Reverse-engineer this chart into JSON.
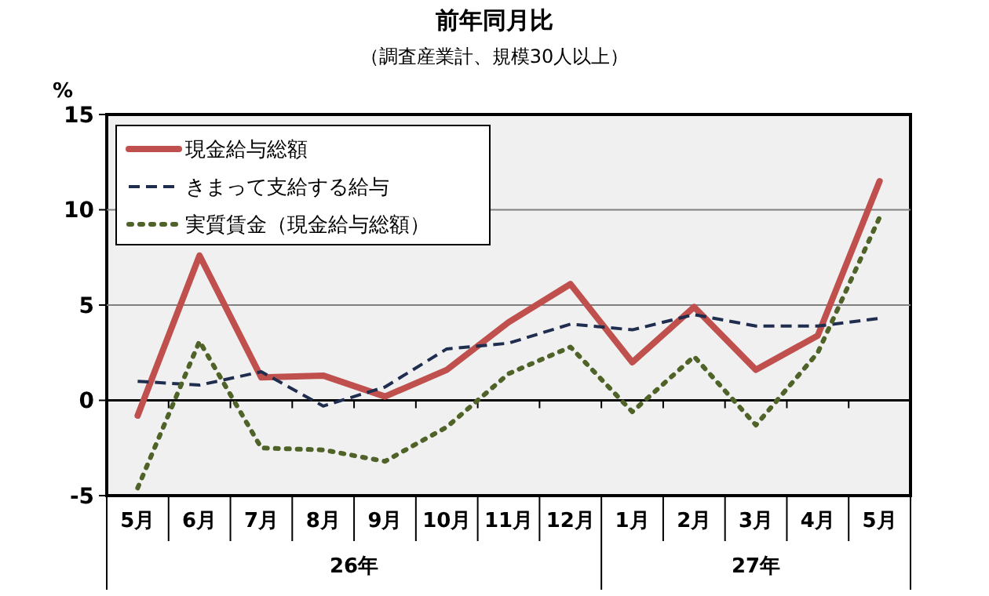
{
  "chart_data": {
    "type": "line",
    "title": "前年同月比",
    "subtitle": "（調査産業計、規模30人以上）",
    "ylabel": "%",
    "categories": [
      "5月",
      "6月",
      "7月",
      "8月",
      "9月",
      "10月",
      "11月",
      "12月",
      "1月",
      "2月",
      "3月",
      "4月",
      "5月"
    ],
    "annotations": [
      "26年",
      "27年"
    ],
    "series": [
      {
        "name": "現金給与総額",
        "color": "#c0504d",
        "line_style": "solid",
        "values": [
          -0.8,
          7.6,
          1.2,
          1.3,
          0.2,
          1.6,
          4.1,
          6.1,
          2.0,
          4.9,
          1.6,
          3.4,
          11.5
        ]
      },
      {
        "name": "きまって支給する給与",
        "color": "#1f2d4f",
        "line_style": "dashed",
        "values": [
          1.0,
          0.8,
          1.5,
          -0.3,
          0.7,
          2.7,
          3.0,
          4.0,
          3.7,
          4.5,
          3.9,
          3.9,
          4.3
        ]
      },
      {
        "name": "実質賃金（現金給与総額）",
        "color": "#4f6228",
        "line_style": "dotted",
        "values": [
          -4.6,
          3.1,
          -2.5,
          -2.6,
          -3.2,
          -1.4,
          1.4,
          2.8,
          -0.6,
          2.3,
          -1.3,
          2.5,
          9.6
        ]
      }
    ],
    "ylim": [
      -5,
      15
    ],
    "yticks": [
      -5,
      0,
      5,
      10,
      15
    ],
    "grid": "y",
    "legend": "top left",
    "marker": "none"
  }
}
